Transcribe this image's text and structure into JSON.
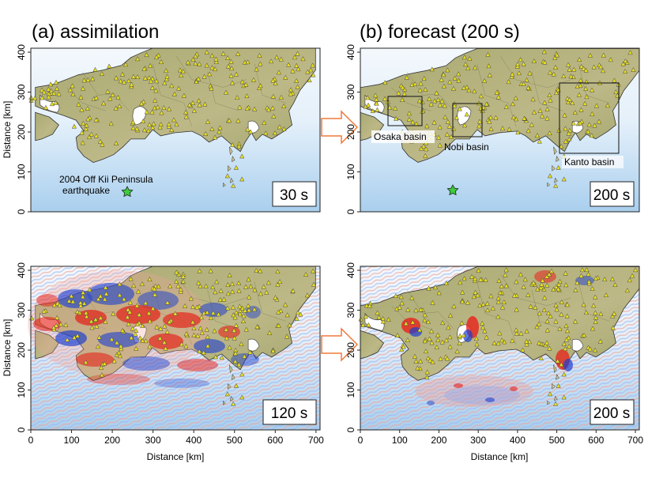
{
  "headers": {
    "assimilation": "(a) assimilation",
    "forecast": "(b) forecast (200 s)"
  },
  "axes": {
    "ylabel": "Distance [km]",
    "xlabel": "Distance [km]",
    "y_ticks": [
      "0",
      "100",
      "200",
      "300",
      "400"
    ],
    "x_ticks": [
      "0",
      "100",
      "200",
      "300",
      "400",
      "500",
      "600",
      "700"
    ]
  },
  "annotations": {
    "earthquake_line1": "2004 Off Kii Peninsula",
    "earthquake_line2": "earthquake",
    "osaka": "Osaka basin",
    "nobi": "Nobi basin",
    "kanto": "Kanto basin"
  },
  "time_labels": {
    "top_left": "30 s",
    "top_right": "200 s",
    "bottom_left": "120 s",
    "bottom_right": "200 s"
  },
  "colors": {
    "land": "#b4b07a",
    "ocean_light": "#eaf3fb",
    "ocean_deep": "#8fc1ea",
    "station": "#e8e020",
    "epicenter": "#3ccc3c",
    "arrow": "#f07a3a",
    "wave_red": "#e8221a",
    "wave_blue": "#1e3fd0"
  }
}
